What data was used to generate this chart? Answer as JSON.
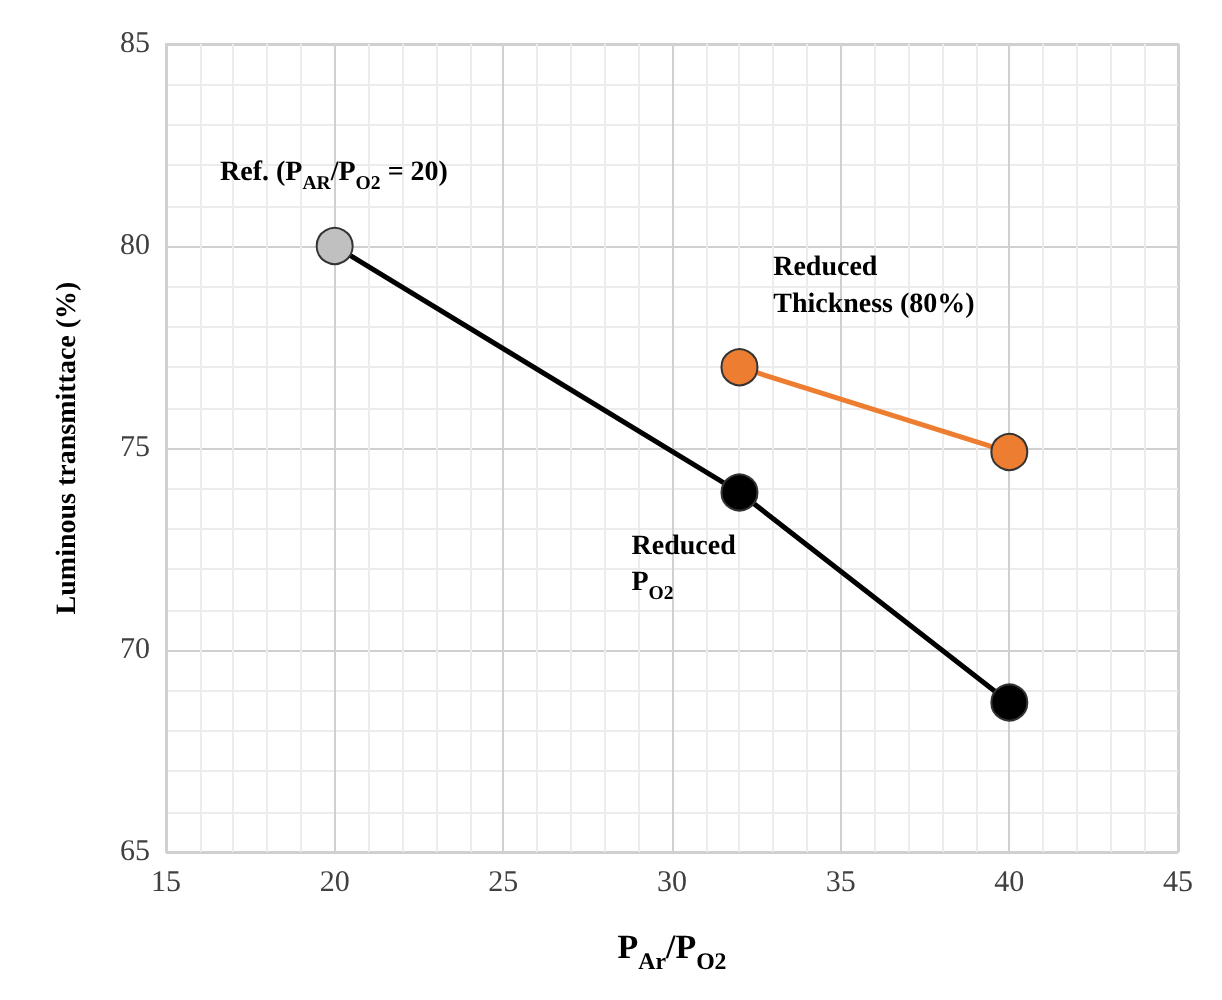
{
  "chart_data": {
    "type": "line",
    "xlabel": "P$_{Ar}$/P$_{O2}$",
    "ylabel": "Luminous transmittace (%)",
    "series": [
      {
        "x": [
          20,
          32,
          40
        ],
        "values": [
          80,
          73.9,
          68.7
        ],
        "color": "#000000",
        "colors": [
          "#c0c0c0",
          "#000000",
          "#000000"
        ]
      },
      {
        "x": [
          32,
          40
        ],
        "values": [
          77,
          74.9
        ],
        "color": "#ed7d31"
      }
    ],
    "xlim": [
      15,
      45
    ],
    "xticks": [
      15,
      20,
      25,
      30,
      35,
      40,
      45
    ],
    "ylim": [
      65,
      85
    ],
    "yticks": [
      65,
      70,
      75,
      80,
      85
    ],
    "grid": true,
    "marker": "circle",
    "line_style": "solid",
    "annotations": [
      "Ref. (P$_{AR}$/P$_{O2}$ = 20)",
      "Reduced\nThickness (80%)",
      "Reduced\nP$_{O2}$"
    ]
  }
}
